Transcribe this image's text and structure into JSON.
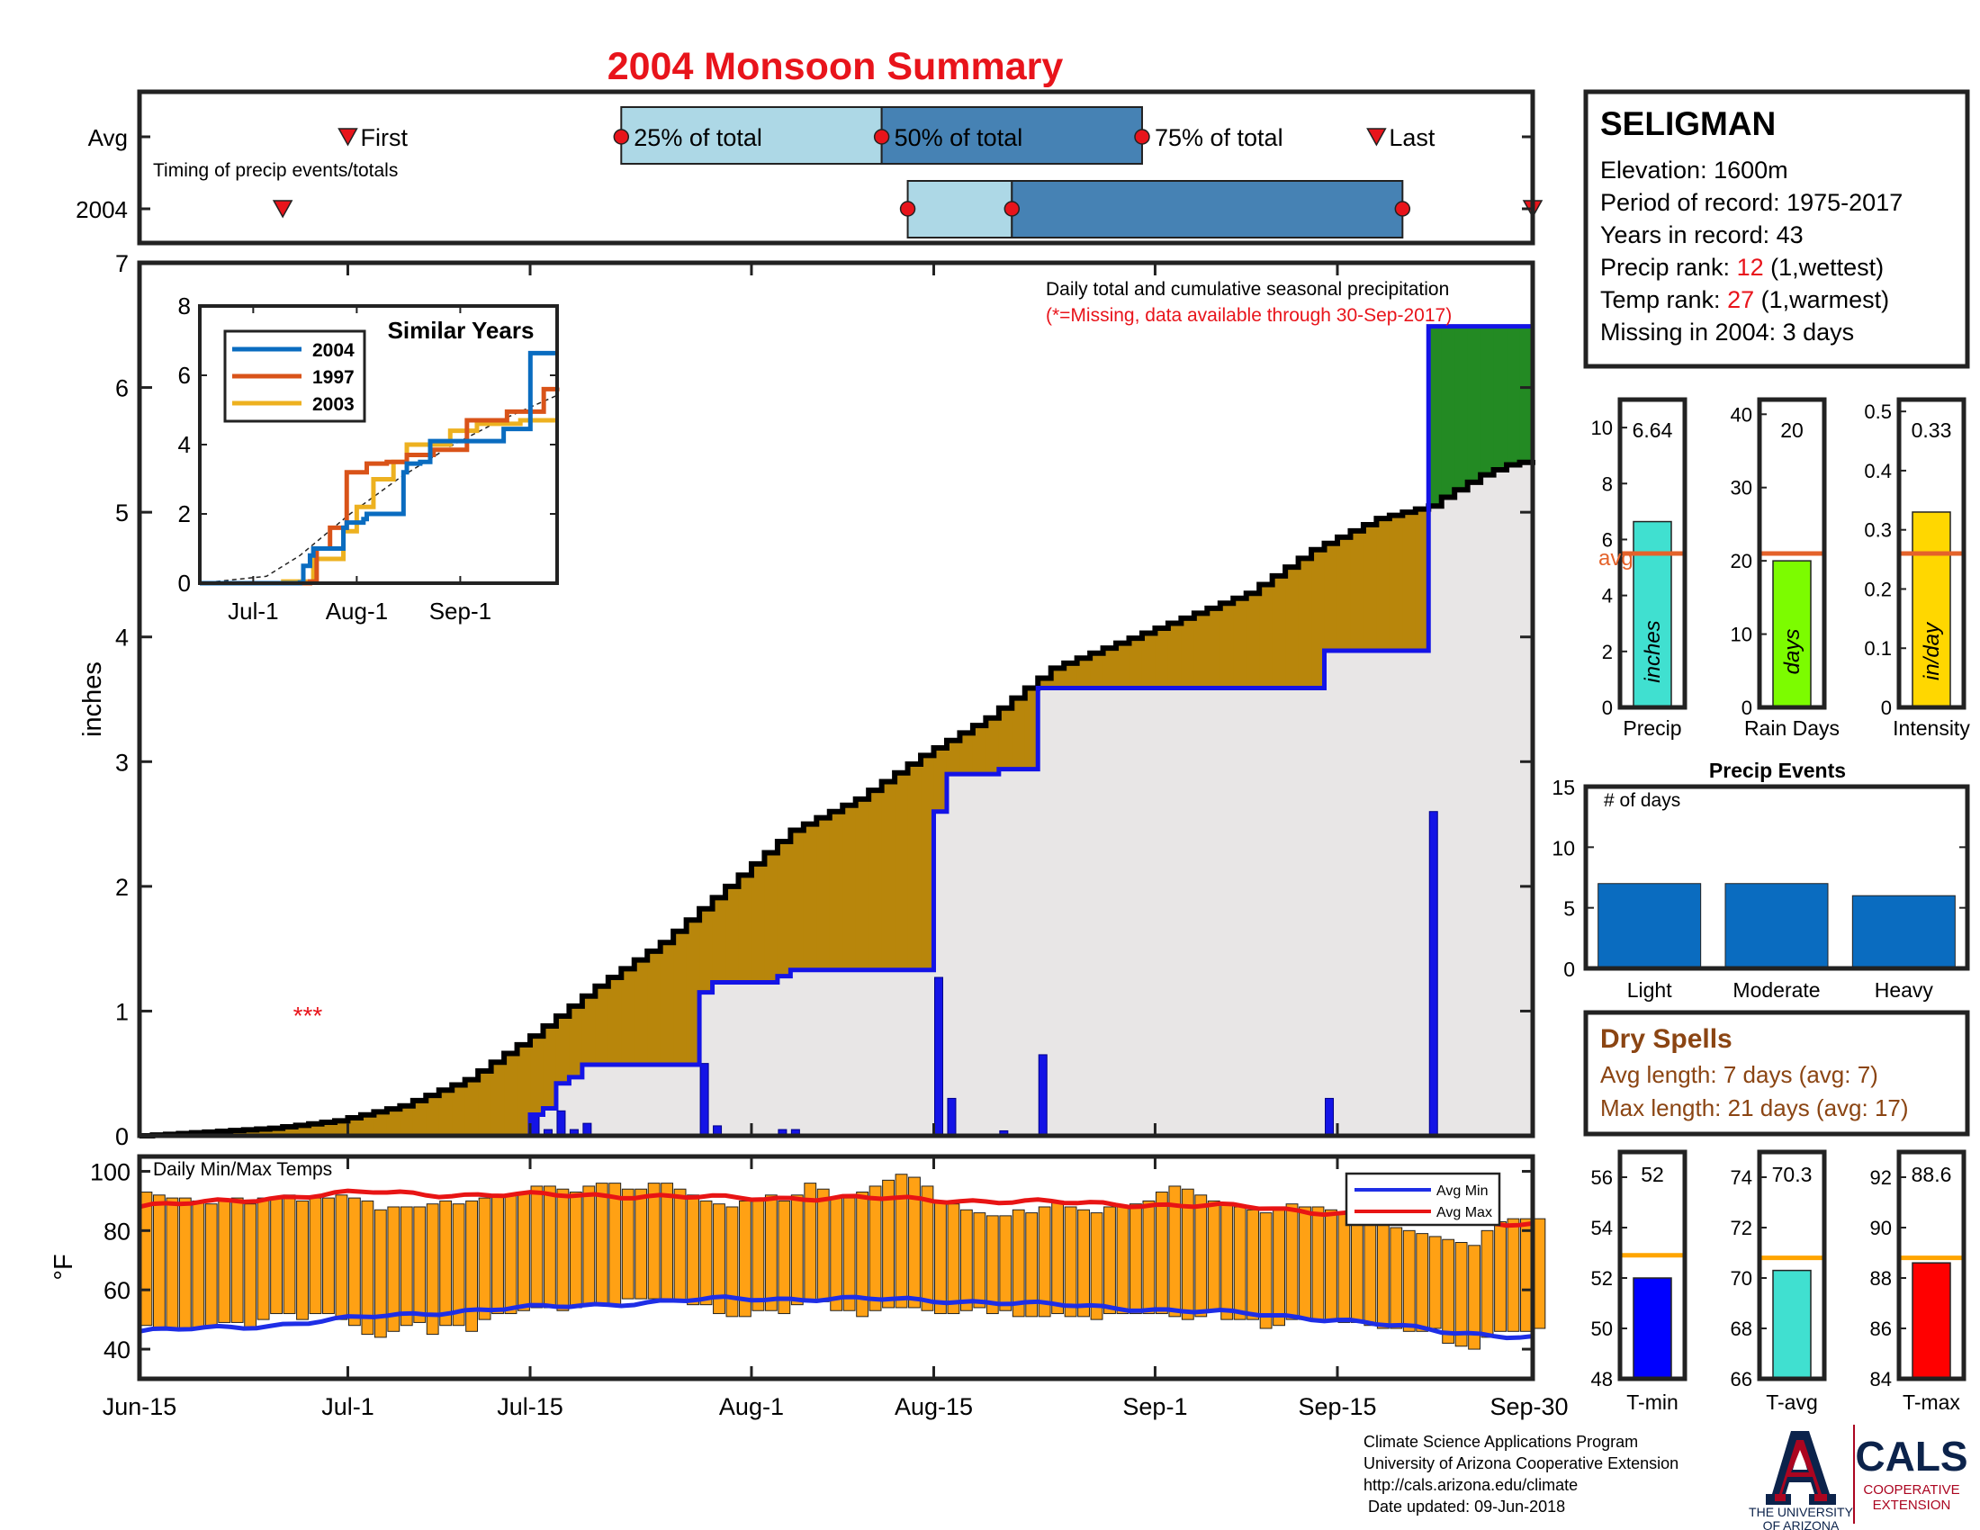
{
  "title": "2004 Monsoon Summary",
  "colors": {
    "title": "#e8141b",
    "cum_2004_line": "#1414e6",
    "cum_avg_line": "#000000",
    "above_fill": "#238a23",
    "below_fill": "#b8860b",
    "base_fill": "#e8e6e6",
    "daily_bar": "#1414e6",
    "temp_bar": "#ffa114",
    "avg_min_line": "#1e2ee6",
    "avg_max_line": "#e81414",
    "avg_marker": "#e4622a",
    "precip_bar": "#40e0d0",
    "raindays_bar": "#7cfc00",
    "intensity_bar": "#ffd700",
    "events_bar": "#0a6cc0",
    "tmin_bar": "#0000ff",
    "tavg_bar": "#40e0d0",
    "tmax_bar": "#ff0000",
    "temp_avg_marker": "#ffa500",
    "timing_light": "#add8e6",
    "timing_dark": "#4682b4",
    "dryspell_text": "#8b4513"
  },
  "timing": {
    "row_avg_label": "Avg",
    "row_year_label": "2004",
    "caption": "Timing of precip events/totals",
    "first_label": "First",
    "p25_label": "25% of total",
    "p50_label": "50% of total",
    "p75_label": "75% of total",
    "last_label": "Last",
    "avg": {
      "first": 16,
      "p25": 37,
      "p50": 57,
      "p75": 77,
      "last": 95
    },
    "year": {
      "first": 11,
      "p25": 59,
      "p50": 67,
      "p75": 97,
      "last": 107
    }
  },
  "main": {
    "ylabel": "inches",
    "note1": "Daily total and cumulative seasonal precipitation",
    "note2": "(*=Missing, data available through 30-Sep-2017)",
    "missing_marker": "***",
    "yticks": [
      "0",
      "1",
      "2",
      "3",
      "4",
      "5",
      "6",
      "7"
    ]
  },
  "temp": {
    "caption": "Daily Min/Max Temps",
    "ylabel": "°F",
    "yticks": [
      "40",
      "60",
      "80",
      "100"
    ],
    "legend_min": "Avg Min",
    "legend_max": "Avg Max"
  },
  "xticks": [
    "Jun-15",
    "Jul-1",
    "Jul-15",
    "Aug-1",
    "Aug-15",
    "Sep-1",
    "Sep-15",
    "Sep-30"
  ],
  "inset": {
    "title": "Similar Years",
    "xticks": [
      "Jul-1",
      "Aug-1",
      "Sep-1"
    ],
    "yticks": [
      "0",
      "2",
      "4",
      "6",
      "8"
    ],
    "legend": [
      "2004",
      "1997",
      "2003"
    ]
  },
  "station": {
    "name": "SELIGMAN",
    "elevation": "Elevation: 1600m",
    "period": "Period of record: 1975-2017",
    "years": "Years in record: 43",
    "precip_rank_prefix": "Precip rank: ",
    "precip_rank_value": "12",
    "precip_rank_suffix": " (1,wettest)",
    "temp_rank_prefix": "Temp rank: ",
    "temp_rank_value": "27",
    "temp_rank_suffix": " (1,warmest)",
    "missing": "Missing in 2004: 3 days"
  },
  "stats": {
    "precip": {
      "value_label": "6.64",
      "unit": "inches",
      "label": "Precip",
      "avg_label": "avg",
      "yticks": [
        "0",
        "2",
        "4",
        "6",
        "8",
        "10"
      ]
    },
    "raindays": {
      "value_label": "20",
      "unit": "days",
      "label": "Rain Days",
      "yticks": [
        "0",
        "10",
        "20",
        "30",
        "40"
      ]
    },
    "intensity": {
      "value_label": "0.33",
      "unit": "in/day",
      "label": "Intensity",
      "yticks": [
        "0",
        "0.1",
        "0.2",
        "0.3",
        "0.4",
        "0.5"
      ]
    }
  },
  "events": {
    "title": "Precip Events",
    "caption": "# of days",
    "yticks": [
      "0",
      "5",
      "10",
      "15"
    ]
  },
  "dryspells": {
    "title": "Dry Spells",
    "avg_line": "Avg length: 7 days (avg: 7)",
    "max_line": "Max length: 21 days (avg: 17)"
  },
  "temps_summary": {
    "tmin": {
      "value_label": "52",
      "label": "T-min",
      "yticks": [
        "48",
        "50",
        "52",
        "54",
        "56"
      ]
    },
    "tavg": {
      "value_label": "70.3",
      "label": "T-avg",
      "yticks": [
        "66",
        "68",
        "70",
        "72",
        "74"
      ]
    },
    "tmax": {
      "value_label": "88.6",
      "label": "T-max",
      "yticks": [
        "84",
        "86",
        "88",
        "90",
        "92"
      ]
    }
  },
  "footer": {
    "line1": "Climate Science Applications Program",
    "line2": "University of Arizona Cooperative Extension",
    "line3": "http://cals.arizona.edu/climate",
    "line4": " Date updated: 09-Jun-2018",
    "ua_letter": "A",
    "ua_name1": "THE UNIVERSITY",
    "ua_name2": "OF ARIZONA",
    "cals": "CALS",
    "coop1": "COOPERATIVE",
    "coop2": "EXTENSION"
  },
  "chart_data": [
    {
      "type": "area",
      "title": "Daily total and cumulative seasonal precipitation",
      "ylabel": "inches",
      "ylim": [
        0,
        7
      ],
      "x_range": [
        "Jun-15",
        "Sep-30"
      ],
      "x_unit": "day of season (0 = Jun-15, 107 = Sep-30)",
      "daily_2004": [
        {
          "day": 30,
          "in": 0.17
        },
        {
          "day": 31,
          "in": 0.05
        },
        {
          "day": 32,
          "in": 0.2
        },
        {
          "day": 33,
          "in": 0.05
        },
        {
          "day": 34,
          "in": 0.1
        },
        {
          "day": 43,
          "in": 0.58
        },
        {
          "day": 44,
          "in": 0.08
        },
        {
          "day": 49,
          "in": 0.05
        },
        {
          "day": 50,
          "in": 0.05
        },
        {
          "day": 61,
          "in": 1.27
        },
        {
          "day": 62,
          "in": 0.3
        },
        {
          "day": 66,
          "in": 0.04
        },
        {
          "day": 69,
          "in": 0.65
        },
        {
          "day": 91,
          "in": 0.3
        },
        {
          "day": 99,
          "in": 2.6
        }
      ],
      "cumulative_avg": [
        [
          0,
          0.0
        ],
        [
          5,
          0.03
        ],
        [
          10,
          0.06
        ],
        [
          15,
          0.12
        ],
        [
          20,
          0.24
        ],
        [
          25,
          0.45
        ],
        [
          30,
          0.8
        ],
        [
          35,
          1.2
        ],
        [
          40,
          1.55
        ],
        [
          45,
          2.0
        ],
        [
          50,
          2.45
        ],
        [
          55,
          2.7
        ],
        [
          60,
          3.05
        ],
        [
          65,
          3.35
        ],
        [
          70,
          3.75
        ],
        [
          75,
          3.95
        ],
        [
          80,
          4.15
        ],
        [
          85,
          4.35
        ],
        [
          90,
          4.7
        ],
        [
          95,
          4.95
        ],
        [
          99,
          5.05
        ],
        [
          100,
          5.12
        ],
        [
          103,
          5.3
        ],
        [
          105,
          5.38
        ],
        [
          107,
          5.42
        ]
      ],
      "cumulative_2004_total": 6.64
    },
    {
      "type": "line",
      "title": "Similar Years",
      "x_range": [
        "Jun-15",
        "Sep-30"
      ],
      "ylim": [
        0,
        8
      ],
      "series": [
        {
          "name": "2004",
          "points": [
            [
              0,
              0
            ],
            [
              30,
              0.02
            ],
            [
              31,
              0.5
            ],
            [
              33,
              0.8
            ],
            [
              34,
              1.0
            ],
            [
              43,
              1.6
            ],
            [
              44,
              1.75
            ],
            [
              49,
              1.85
            ],
            [
              50,
              2.0
            ],
            [
              61,
              3.2
            ],
            [
              62,
              3.45
            ],
            [
              66,
              3.5
            ],
            [
              69,
              4.1
            ],
            [
              91,
              4.45
            ],
            [
              99,
              6.64
            ],
            [
              107,
              6.64
            ]
          ]
        },
        {
          "name": "1997",
          "points": [
            [
              0,
              0
            ],
            [
              33,
              0.05
            ],
            [
              35,
              1.0
            ],
            [
              39,
              1.6
            ],
            [
              44,
              3.2
            ],
            [
              50,
              3.45
            ],
            [
              56,
              3.5
            ],
            [
              62,
              3.7
            ],
            [
              70,
              3.85
            ],
            [
              80,
              4.7
            ],
            [
              92,
              4.95
            ],
            [
              103,
              5.6
            ],
            [
              107,
              5.65
            ]
          ]
        },
        {
          "name": "2003",
          "points": [
            [
              0,
              0
            ],
            [
              25,
              0.05
            ],
            [
              34,
              0.7
            ],
            [
              43,
              1.5
            ],
            [
              47,
              2.2
            ],
            [
              52,
              3.0
            ],
            [
              58,
              3.5
            ],
            [
              62,
              4.0
            ],
            [
              75,
              4.4
            ],
            [
              83,
              4.6
            ],
            [
              96,
              4.7
            ],
            [
              107,
              4.7
            ]
          ]
        }
      ],
      "average_dashed": [
        [
          0,
          0
        ],
        [
          20,
          0.2
        ],
        [
          30,
          0.8
        ],
        [
          45,
          2.0
        ],
        [
          60,
          3.05
        ],
        [
          75,
          3.95
        ],
        [
          90,
          4.7
        ],
        [
          107,
          5.42
        ]
      ]
    },
    {
      "type": "bar",
      "title": "Daily Min/Max Temps",
      "ylabel": "°F",
      "ylim": [
        30,
        105
      ],
      "daily_min": [
        48,
        47,
        47,
        47,
        47,
        48,
        49,
        49,
        47,
        50,
        52,
        52,
        50,
        52,
        52,
        50,
        48,
        45,
        44,
        46,
        48,
        49,
        45,
        48,
        48,
        46,
        50,
        52,
        52,
        53,
        54,
        54,
        53,
        54,
        55,
        55,
        55,
        57,
        57,
        57,
        57,
        56,
        55,
        55,
        52,
        51,
        51,
        53,
        53,
        52,
        55,
        56,
        56,
        53,
        53,
        51,
        53,
        54,
        54,
        54,
        53,
        52,
        52,
        53,
        54,
        52,
        53,
        51,
        51,
        51,
        52,
        51,
        51,
        50,
        52,
        52,
        52,
        52,
        52,
        51,
        50,
        51,
        53,
        50,
        50,
        50,
        47,
        48,
        50,
        50,
        50,
        50,
        49,
        49,
        48,
        47,
        47,
        46,
        46,
        47,
        42,
        41,
        40,
        44,
        46,
        46,
        46,
        47
      ],
      "daily_max": [
        93,
        92,
        91,
        91,
        90,
        89,
        90,
        91,
        89,
        91,
        91,
        92,
        90,
        91,
        91,
        92,
        91,
        90,
        87,
        88,
        88,
        88,
        89,
        90,
        89,
        90,
        91,
        92,
        92,
        93,
        95,
        95,
        94,
        93,
        95,
        96,
        96,
        94,
        94,
        96,
        96,
        94,
        92,
        90,
        89,
        88,
        90,
        91,
        92,
        90,
        92,
        96,
        94,
        91,
        91,
        93,
        95,
        97,
        99,
        98,
        95,
        90,
        89,
        87,
        86,
        85,
        85,
        87,
        86,
        88,
        90,
        88,
        87,
        86,
        88,
        88,
        89,
        90,
        93,
        95,
        94,
        92,
        90,
        89,
        88,
        87,
        86,
        88,
        89,
        88,
        88,
        87,
        86,
        85,
        83,
        82,
        81,
        80,
        79,
        78,
        77,
        76,
        75,
        80,
        83,
        84,
        84,
        84
      ],
      "avg_min": [
        [
          0,
          46
        ],
        [
          10,
          48
        ],
        [
          18,
          51
        ],
        [
          25,
          53
        ],
        [
          35,
          55
        ],
        [
          45,
          57
        ],
        [
          55,
          57
        ],
        [
          65,
          56
        ],
        [
          75,
          54
        ],
        [
          85,
          52
        ],
        [
          92,
          50
        ],
        [
          100,
          46
        ],
        [
          107,
          44
        ]
      ],
      "avg_max": [
        [
          0,
          88
        ],
        [
          10,
          91
        ],
        [
          18,
          93
        ],
        [
          25,
          92
        ],
        [
          35,
          92
        ],
        [
          45,
          91
        ],
        [
          55,
          91
        ],
        [
          65,
          90
        ],
        [
          75,
          89
        ],
        [
          85,
          88
        ],
        [
          92,
          86
        ],
        [
          100,
          84
        ],
        [
          107,
          82
        ]
      ]
    },
    {
      "type": "bar",
      "categories": [
        "Precip",
        "Rain Days",
        "Intensity"
      ],
      "values": [
        6.64,
        20,
        0.33
      ],
      "averages": [
        5.5,
        21,
        0.26
      ],
      "ylims": [
        [
          0,
          11
        ],
        [
          0,
          42
        ],
        [
          0,
          0.52
        ]
      ]
    },
    {
      "type": "bar",
      "title": "Precip Events",
      "ylabel": "# of days",
      "categories": [
        "Light",
        "Moderate",
        "Heavy"
      ],
      "values": [
        7,
        7,
        6
      ],
      "ylim": [
        0,
        15
      ]
    },
    {
      "type": "bar",
      "categories": [
        "T-min",
        "T-avg",
        "T-max"
      ],
      "values": [
        52,
        70.3,
        88.6
      ],
      "averages": [
        52.9,
        70.8,
        88.8
      ],
      "ylims": [
        [
          48,
          57
        ],
        [
          66,
          75
        ],
        [
          84,
          93
        ]
      ]
    }
  ]
}
